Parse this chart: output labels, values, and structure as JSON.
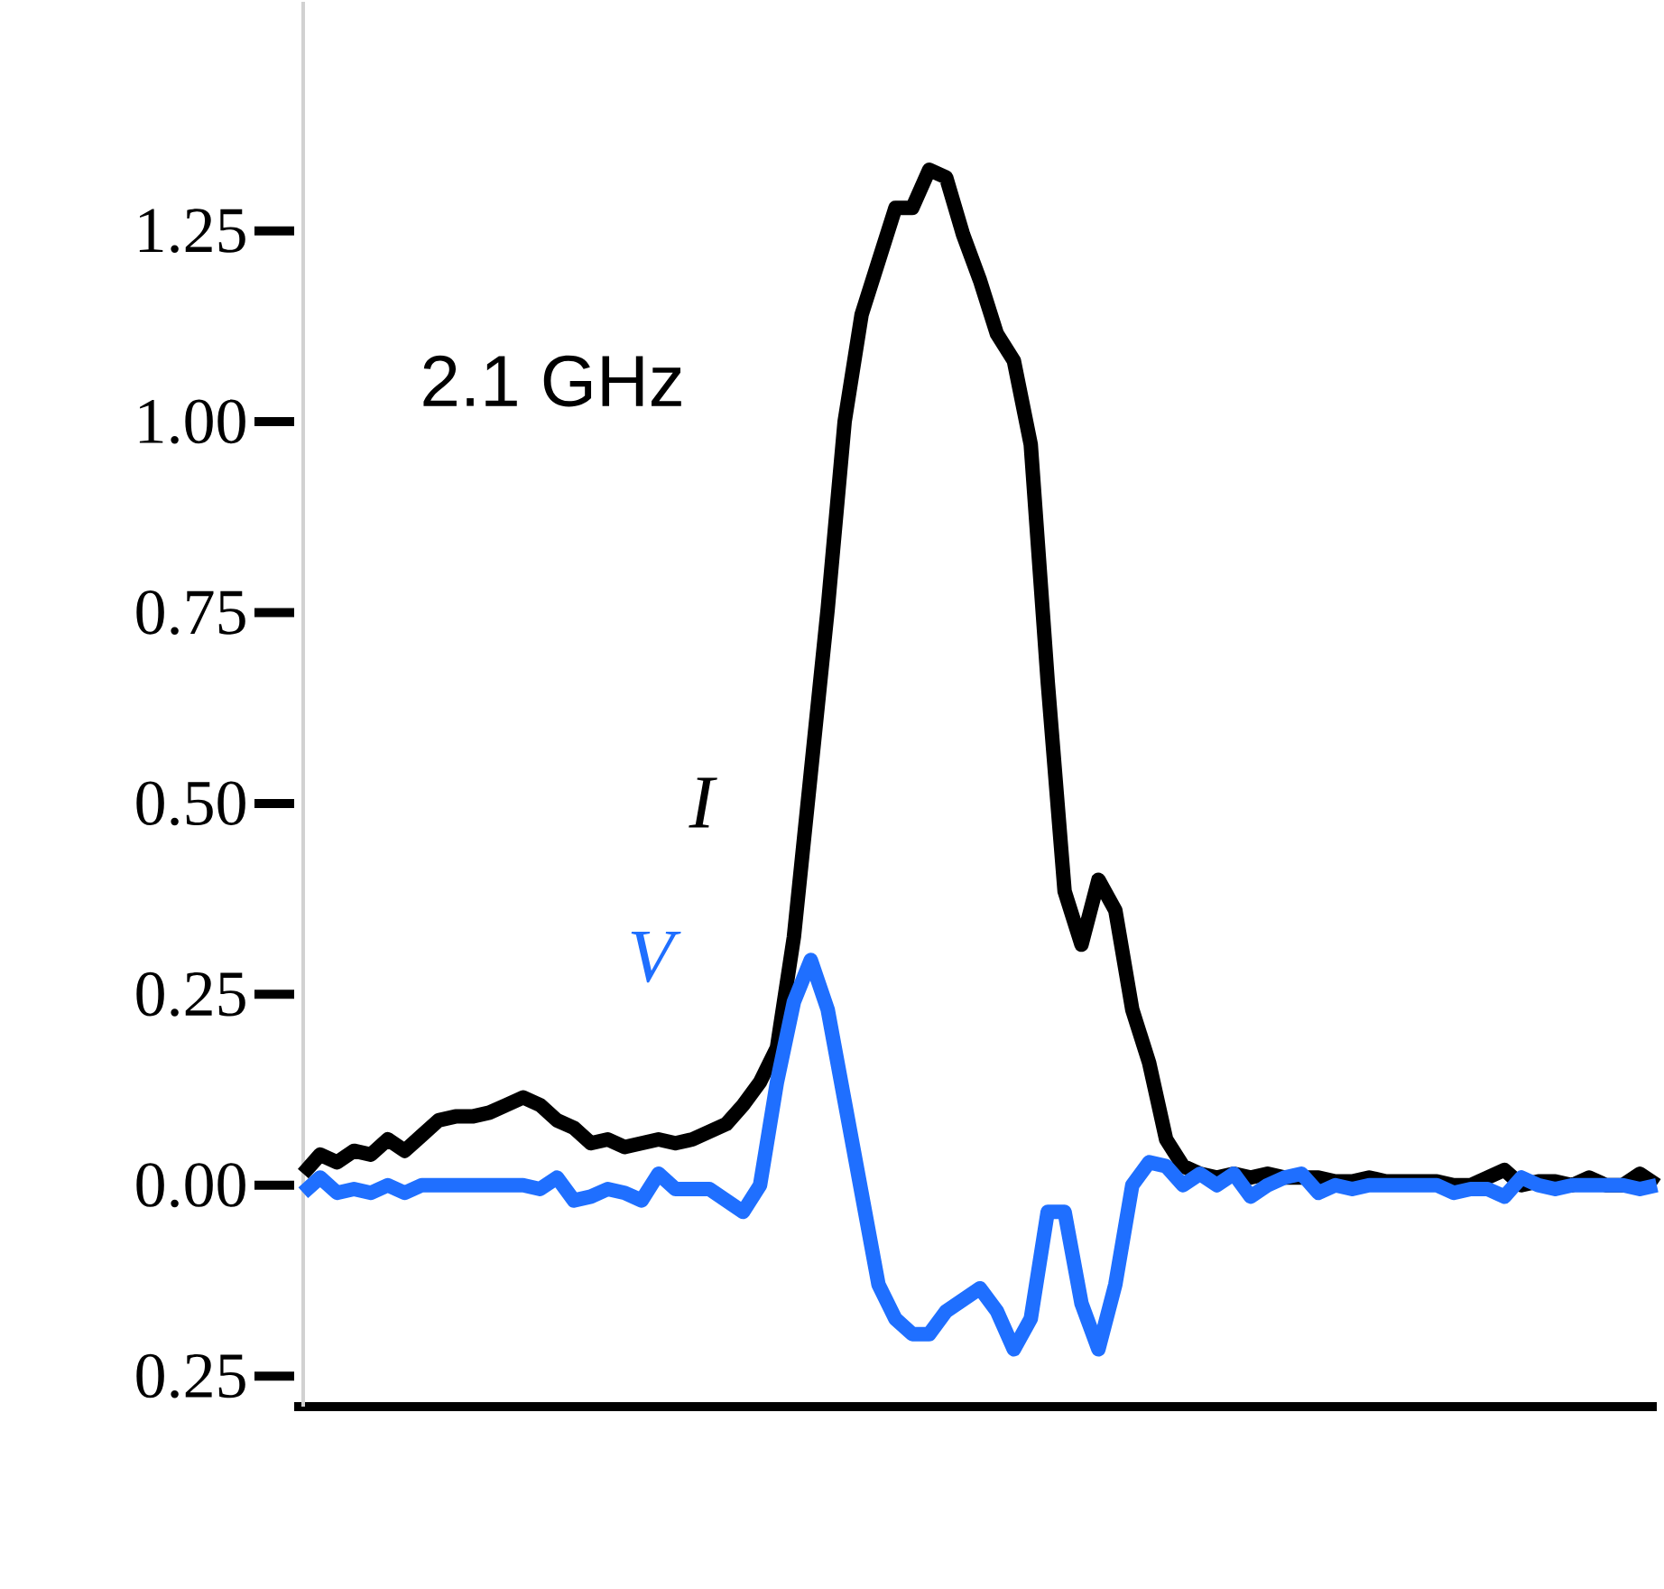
{
  "chart_data": {
    "type": "line",
    "categories": [
      null,
      null,
      null,
      null,
      null,
      null,
      null,
      null,
      null,
      null,
      null,
      null,
      null,
      null,
      null,
      null,
      null,
      null,
      null,
      null,
      null,
      null,
      null,
      null,
      null,
      null,
      null,
      null,
      null,
      null,
      null,
      null,
      null,
      null,
      null,
      null,
      null,
      null,
      null,
      null,
      null,
      null,
      null,
      null,
      null,
      null,
      null,
      null,
      null,
      null,
      null,
      null,
      null,
      null,
      null,
      null,
      null,
      null,
      null,
      null,
      null,
      null,
      null,
      null,
      null,
      null,
      null,
      null,
      null,
      null,
      null,
      null,
      null,
      null,
      null,
      null,
      null,
      null,
      null,
      null,
      null
    ],
    "series": [
      {
        "name": "I",
        "color": "#000000",
        "values": [
          0.015,
          0.04,
          0.03,
          0.045,
          0.04,
          0.06,
          0.045,
          0.065,
          0.085,
          0.09,
          0.09,
          0.095,
          0.105,
          0.115,
          0.105,
          0.085,
          0.075,
          0.055,
          0.06,
          0.05,
          0.055,
          0.06,
          0.055,
          0.06,
          0.07,
          0.08,
          0.105,
          0.135,
          0.18,
          0.325,
          0.54,
          0.755,
          1.0,
          1.14,
          1.21,
          1.28,
          1.28,
          1.33,
          1.32,
          1.245,
          1.185,
          1.115,
          1.08,
          0.97,
          0.66,
          0.385,
          0.315,
          0.4,
          0.36,
          0.23,
          0.16,
          0.06,
          0.025,
          0.015,
          0.01,
          0.015,
          0.01,
          0.015,
          0.01,
          0.01,
          0.01,
          0.005,
          0.005,
          0.01,
          0.005,
          0.005,
          0.005,
          0.005,
          0.0,
          0.0,
          0.01,
          0.02,
          0.0,
          0.005,
          0.005,
          0.0,
          0.01,
          0.0,
          0.0,
          0.015,
          0.0
        ]
      },
      {
        "name": "V",
        "color": "#1f6fff",
        "values": [
          -0.01,
          0.01,
          -0.01,
          -0.005,
          -0.01,
          0.0,
          -0.01,
          0.0,
          0.0,
          0.0,
          0.0,
          0.0,
          0.0,
          0.0,
          -0.005,
          0.01,
          -0.02,
          -0.015,
          -0.005,
          -0.01,
          -0.02,
          0.015,
          -0.005,
          -0.005,
          -0.005,
          -0.02,
          -0.035,
          0.0,
          0.135,
          0.24,
          0.295,
          0.23,
          0.11,
          -0.01,
          -0.13,
          -0.175,
          -0.195,
          -0.195,
          -0.165,
          -0.15,
          -0.135,
          -0.165,
          -0.215,
          -0.175,
          -0.035,
          -0.035,
          -0.155,
          -0.215,
          -0.13,
          0.0,
          0.03,
          0.025,
          0.0,
          0.015,
          0.0,
          0.015,
          -0.015,
          0.0,
          0.01,
          0.015,
          -0.01,
          0.0,
          -0.005,
          0.0,
          0.0,
          0.0,
          0.0,
          0.0,
          -0.01,
          -0.005,
          -0.005,
          -0.015,
          0.01,
          0.0,
          -0.005,
          0.0,
          0.0,
          0.0,
          0.0,
          -0.005,
          0.0
        ]
      }
    ],
    "ylim": [
      -0.29,
      1.55
    ],
    "yticks": [
      {
        "value": -0.25,
        "label": "0.25"
      },
      {
        "value": 0,
        "label": "0.00"
      },
      {
        "value": 0.25,
        "label": "0.25"
      },
      {
        "value": 0.5,
        "label": "0.50"
      },
      {
        "value": 0.75,
        "label": "0.75"
      },
      {
        "value": 1.0,
        "label": "1.00"
      },
      {
        "value": 1.25,
        "label": "1.25"
      }
    ],
    "annotations": [
      "2.1 GHz"
    ],
    "tick_labels": "y",
    "line_style": "solid",
    "marker": "none",
    "legend": false
  }
}
